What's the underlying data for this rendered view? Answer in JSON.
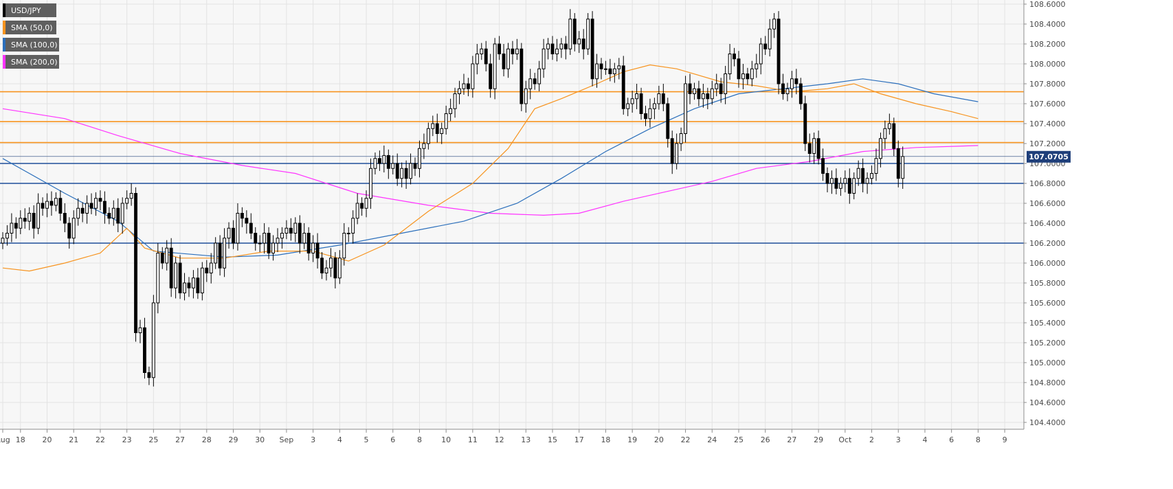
{
  "legend": {
    "symbol": "USD/JPY",
    "sma50": "SMA (50,0)",
    "sma100": "SMA (100,0)",
    "sma200": "SMA (200,0)"
  },
  "price_badge": "107.0705",
  "colors": {
    "sma50": "#f7931e",
    "sma100": "#2a6ebb",
    "sma200": "#ff33ff",
    "resistance": "#f7931e",
    "support": "#1f4e9a",
    "candle": "#000000",
    "badge": "#1f3f7a"
  },
  "chart_data": {
    "type": "candlestick",
    "title": "",
    "xlabel": "",
    "ylabel": "",
    "ylim": [
      104.3,
      108.65
    ],
    "y_ticks": [
      "108.6000",
      "108.4000",
      "108.2000",
      "108.0000",
      "107.8000",
      "107.6000",
      "107.4000",
      "107.2000",
      "107.0000",
      "106.8000",
      "106.6000",
      "106.4000",
      "106.2000",
      "106.0000",
      "105.8000",
      "105.6000",
      "105.4000",
      "105.2000",
      "105.0000",
      "104.8000",
      "104.6000",
      "104.4000"
    ],
    "x_ticks": [
      {
        "label": "Aug",
        "t": 0
      },
      {
        "label": "18",
        "t": 4
      },
      {
        "label": "20",
        "t": 10
      },
      {
        "label": "21",
        "t": 16
      },
      {
        "label": "22",
        "t": 22
      },
      {
        "label": "23",
        "t": 28
      },
      {
        "label": "25",
        "t": 34
      },
      {
        "label": "27",
        "t": 40
      },
      {
        "label": "28",
        "t": 46
      },
      {
        "label": "29",
        "t": 52
      },
      {
        "label": "30",
        "t": 58
      },
      {
        "label": "Sep",
        "t": 64
      },
      {
        "label": "3",
        "t": 70
      },
      {
        "label": "4",
        "t": 76
      },
      {
        "label": "5",
        "t": 82
      },
      {
        "label": "6",
        "t": 88
      },
      {
        "label": "8",
        "t": 94
      },
      {
        "label": "10",
        "t": 100
      },
      {
        "label": "11",
        "t": 106
      },
      {
        "label": "12",
        "t": 112
      },
      {
        "label": "13",
        "t": 118
      },
      {
        "label": "15",
        "t": 124
      },
      {
        "label": "17",
        "t": 130
      },
      {
        "label": "18",
        "t": 136
      },
      {
        "label": "19",
        "t": 142
      },
      {
        "label": "20",
        "t": 148
      },
      {
        "label": "22",
        "t": 154
      },
      {
        "label": "24",
        "t": 160
      },
      {
        "label": "25",
        "t": 166
      },
      {
        "label": "26",
        "t": 172
      },
      {
        "label": "27",
        "t": 178
      },
      {
        "label": "29",
        "t": 184
      },
      {
        "label": "Oct",
        "t": 190
      },
      {
        "label": "2",
        "t": 196
      },
      {
        "label": "3",
        "t": 202
      },
      {
        "label": "4",
        "t": 208
      },
      {
        "label": "6",
        "t": 214
      },
      {
        "label": "8",
        "t": 220
      },
      {
        "label": "9",
        "t": 226
      }
    ],
    "t_range": [
      0,
      228
    ],
    "closes": [
      106.25,
      106.3,
      106.4,
      106.35,
      106.45,
      106.42,
      106.5,
      106.35,
      106.6,
      106.55,
      106.62,
      106.58,
      106.65,
      106.5,
      106.4,
      106.25,
      106.45,
      106.55,
      106.5,
      106.6,
      106.55,
      106.65,
      106.62,
      106.5,
      106.45,
      106.55,
      106.4,
      106.6,
      106.65,
      106.7,
      105.3,
      105.35,
      104.9,
      104.85,
      105.6,
      106.1,
      106.0,
      106.15,
      105.75,
      106.0,
      105.7,
      105.8,
      105.75,
      105.85,
      105.7,
      105.95,
      105.9,
      106.0,
      106.2,
      105.95,
      106.25,
      106.35,
      106.2,
      106.5,
      106.45,
      106.4,
      106.3,
      106.2,
      106.2,
      106.3,
      106.1,
      106.2,
      106.25,
      106.3,
      106.35,
      106.3,
      106.4,
      106.2,
      106.3,
      106.1,
      106.2,
      106.05,
      105.9,
      105.95,
      106.05,
      105.85,
      106.05,
      106.3,
      106.3,
      106.45,
      106.6,
      106.55,
      106.65,
      106.95,
      107.05,
      107.0,
      107.08,
      106.95,
      107.0,
      106.85,
      106.95,
      106.85,
      107.0,
      106.95,
      107.15,
      107.2,
      107.35,
      107.4,
      107.3,
      107.35,
      107.5,
      107.55,
      107.7,
      107.75,
      107.8,
      107.75,
      108.0,
      108.1,
      108.15,
      108.0,
      107.75,
      108.2,
      108.1,
      107.95,
      108.15,
      108.1,
      108.15,
      107.6,
      107.75,
      107.85,
      107.8,
      107.95,
      108.15,
      108.2,
      108.1,
      108.15,
      108.2,
      108.15,
      108.45,
      108.2,
      108.25,
      108.15,
      108.45,
      107.85,
      108.0,
      107.95,
      107.95,
      107.9,
      107.95,
      107.98,
      107.55,
      107.6,
      107.65,
      107.7,
      107.5,
      107.45,
      107.55,
      107.6,
      107.7,
      107.6,
      107.25,
      107.0,
      107.2,
      107.3,
      107.8,
      107.7,
      107.75,
      107.65,
      107.7,
      107.65,
      107.75,
      107.8,
      107.7,
      107.9,
      108.1,
      108.05,
      107.85,
      107.9,
      107.85,
      107.95,
      108.0,
      108.2,
      108.15,
      108.35,
      108.45,
      107.8,
      107.7,
      107.75,
      107.85,
      107.8,
      107.6,
      107.2,
      107.1,
      107.25,
      107.05,
      106.9,
      106.8,
      106.85,
      106.75,
      106.8,
      106.85,
      106.7,
      106.85,
      106.95,
      106.8,
      106.85,
      106.9,
      107.05,
      107.25,
      107.35,
      107.4,
      107.15,
      106.85,
      107.07
    ],
    "sma50": [
      [
        0,
        105.95
      ],
      [
        6,
        105.92
      ],
      [
        14,
        106.0
      ],
      [
        22,
        106.1
      ],
      [
        28,
        106.35
      ],
      [
        32,
        106.15
      ],
      [
        40,
        106.05
      ],
      [
        50,
        106.05
      ],
      [
        60,
        106.12
      ],
      [
        70,
        106.12
      ],
      [
        78,
        106.02
      ],
      [
        86,
        106.18
      ],
      [
        96,
        106.52
      ],
      [
        106,
        106.8
      ],
      [
        114,
        107.15
      ],
      [
        120,
        107.55
      ],
      [
        126,
        107.65
      ],
      [
        134,
        107.8
      ],
      [
        140,
        107.92
      ],
      [
        146,
        107.99
      ],
      [
        152,
        107.95
      ],
      [
        162,
        107.82
      ],
      [
        170,
        107.78
      ],
      [
        178,
        107.72
      ],
      [
        186,
        107.75
      ],
      [
        192,
        107.8
      ],
      [
        198,
        107.7
      ],
      [
        206,
        107.6
      ],
      [
        214,
        107.52
      ],
      [
        220,
        107.45
      ]
    ],
    "sma100": [
      [
        0,
        107.05
      ],
      [
        6,
        106.9
      ],
      [
        14,
        106.7
      ],
      [
        26,
        106.42
      ],
      [
        34,
        106.12
      ],
      [
        50,
        106.06
      ],
      [
        62,
        106.08
      ],
      [
        76,
        106.18
      ],
      [
        90,
        106.3
      ],
      [
        104,
        106.42
      ],
      [
        116,
        106.6
      ],
      [
        126,
        106.85
      ],
      [
        136,
        107.12
      ],
      [
        146,
        107.35
      ],
      [
        156,
        107.55
      ],
      [
        166,
        107.7
      ],
      [
        176,
        107.75
      ],
      [
        186,
        107.8
      ],
      [
        194,
        107.85
      ],
      [
        202,
        107.8
      ],
      [
        210,
        107.7
      ],
      [
        220,
        107.62
      ]
    ],
    "sma200": [
      [
        0,
        107.55
      ],
      [
        14,
        107.45
      ],
      [
        26,
        107.28
      ],
      [
        40,
        107.1
      ],
      [
        54,
        106.98
      ],
      [
        66,
        106.9
      ],
      [
        80,
        106.7
      ],
      [
        96,
        106.58
      ],
      [
        110,
        106.5
      ],
      [
        122,
        106.48
      ],
      [
        130,
        106.5
      ],
      [
        140,
        106.62
      ],
      [
        150,
        106.72
      ],
      [
        160,
        106.82
      ],
      [
        170,
        106.95
      ],
      [
        182,
        107.02
      ],
      [
        194,
        107.12
      ],
      [
        206,
        107.16
      ],
      [
        220,
        107.18
      ]
    ],
    "horizontal_levels": [
      {
        "kind": "resistance",
        "value": 107.72
      },
      {
        "kind": "resistance",
        "value": 107.42
      },
      {
        "kind": "resistance",
        "value": 107.21
      },
      {
        "kind": "support",
        "value": 107.0
      },
      {
        "kind": "support",
        "value": 106.8
      },
      {
        "kind": "support",
        "value": 106.2
      }
    ],
    "last_price": 107.0705
  }
}
